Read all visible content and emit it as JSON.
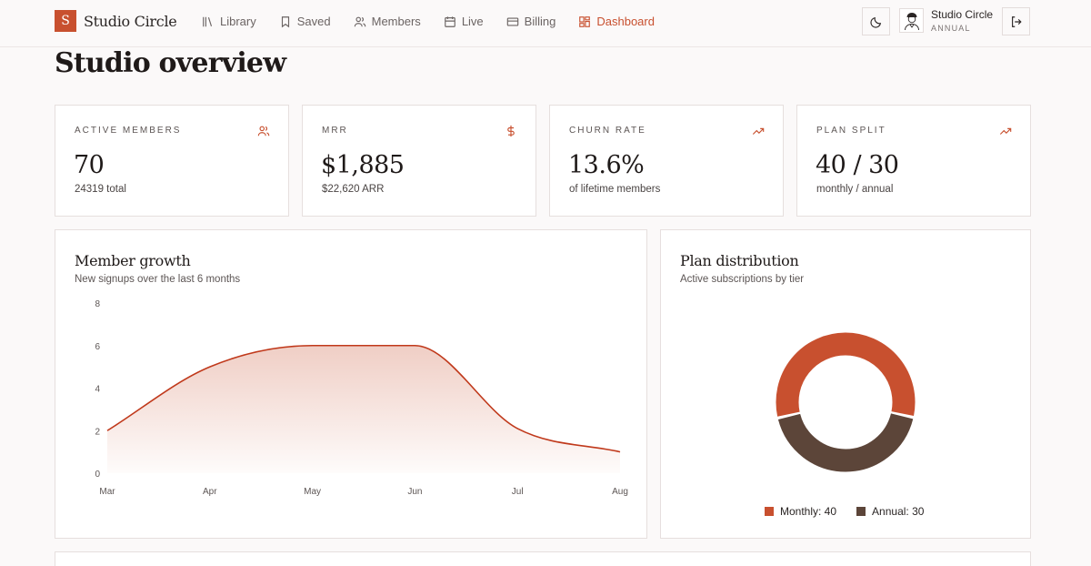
{
  "brand": {
    "logo_letter": "S",
    "name": "Studio Circle"
  },
  "nav": {
    "items": [
      {
        "label": "Library",
        "icon": "library-icon"
      },
      {
        "label": "Saved",
        "icon": "bookmark-icon"
      },
      {
        "label": "Members",
        "icon": "users-icon"
      },
      {
        "label": "Live",
        "icon": "calendar-icon"
      },
      {
        "label": "Billing",
        "icon": "credit-card-icon"
      },
      {
        "label": "Dashboard",
        "icon": "dashboard-icon",
        "active": true
      }
    ]
  },
  "user": {
    "name": "Studio Circle",
    "plan": "ANNUAL"
  },
  "page": {
    "title": "Studio overview"
  },
  "stats": [
    {
      "label": "ACTIVE MEMBERS",
      "value": "70",
      "sub": "24319 total",
      "icon": "users-icon"
    },
    {
      "label": "MRR",
      "value": "$1,885",
      "sub": "$22,620 ARR",
      "icon": "dollar-icon"
    },
    {
      "label": "CHURN RATE",
      "value": "13.6%",
      "sub": "of lifetime members",
      "icon": "trend-up-icon"
    },
    {
      "label": "PLAN SPLIT",
      "value": "40 / 30",
      "sub": "monthly / annual",
      "icon": "trend-up-icon"
    }
  ],
  "growth": {
    "title": "Member growth",
    "subtitle": "New signups over the last 6 months"
  },
  "distribution": {
    "title": "Plan distribution",
    "subtitle": "Active subscriptions by tier"
  },
  "colors": {
    "accent": "#c8502f",
    "annual": "#5c4539",
    "line": "#c0391b"
  },
  "chart_data": [
    {
      "type": "area",
      "categories": [
        "Mar",
        "Apr",
        "May",
        "Jun",
        "Jul",
        "Aug"
      ],
      "series": [
        {
          "values": [
            2,
            5,
            6,
            6,
            2.1,
            1
          ]
        }
      ],
      "yticks": [
        0,
        2,
        4,
        6,
        8
      ],
      "ylim": [
        0,
        8
      ]
    },
    {
      "type": "pie",
      "labels": [
        "Monthly",
        "Annual"
      ],
      "values": [
        40,
        30
      ],
      "legend": [
        "Monthly: 40",
        "Annual: 30"
      ]
    }
  ]
}
